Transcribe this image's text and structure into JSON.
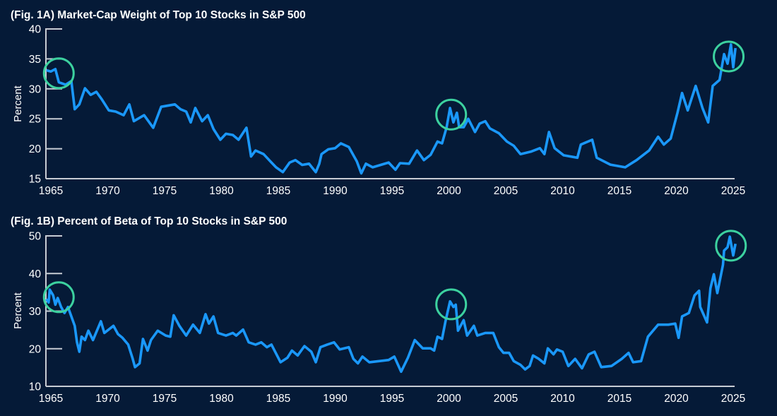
{
  "colors": {
    "background": "#051a37",
    "line": "#1a98fb",
    "highlight": "#3cd19f",
    "axis": "#c8ccd4"
  },
  "chart_data": [
    {
      "type": "line",
      "title": "(Fig. 1A) Market-Cap Weight of Top 10 Stocks in S&P 500",
      "xlabel": "",
      "ylabel": "Percent",
      "xlim": [
        1964.6,
        2025.2
      ],
      "ylim": [
        15,
        40
      ],
      "x_ticks": [
        "1965",
        "1970",
        "1975",
        "1980",
        "1985",
        "1990",
        "1995",
        "2000",
        "2005",
        "2010",
        "2015",
        "2020",
        "2025"
      ],
      "y_ticks": [
        "15",
        "20",
        "25",
        "30",
        "35",
        "40"
      ],
      "grid": false,
      "highlights": [
        {
          "x": 1965.7,
          "y": 32.6
        },
        {
          "x": 2000.2,
          "y": 25.7
        },
        {
          "x": 2024.6,
          "y": 35.4
        }
      ],
      "points": [
        [
          1964.6,
          33.1
        ],
        [
          1965.0,
          32.9
        ],
        [
          1965.4,
          33.3
        ],
        [
          1965.7,
          31.1
        ],
        [
          1966.3,
          30.7
        ],
        [
          1966.8,
          31.3
        ],
        [
          1967.1,
          26.6
        ],
        [
          1967.5,
          27.4
        ],
        [
          1968.0,
          30.1
        ],
        [
          1968.5,
          29.0
        ],
        [
          1969.0,
          29.5
        ],
        [
          1969.5,
          28.2
        ],
        [
          1970.1,
          26.4
        ],
        [
          1970.7,
          26.2
        ],
        [
          1971.4,
          25.6
        ],
        [
          1971.9,
          27.4
        ],
        [
          1972.3,
          24.6
        ],
        [
          1973.2,
          25.6
        ],
        [
          1974.0,
          23.5
        ],
        [
          1974.7,
          27.0
        ],
        [
          1975.9,
          27.4
        ],
        [
          1976.4,
          26.6
        ],
        [
          1976.9,
          26.2
        ],
        [
          1977.3,
          24.4
        ],
        [
          1977.7,
          26.8
        ],
        [
          1978.3,
          24.6
        ],
        [
          1978.8,
          25.6
        ],
        [
          1979.3,
          23.3
        ],
        [
          1979.9,
          21.5
        ],
        [
          1980.4,
          22.5
        ],
        [
          1981.0,
          22.3
        ],
        [
          1981.5,
          21.5
        ],
        [
          1982.2,
          23.5
        ],
        [
          1982.6,
          18.7
        ],
        [
          1983.0,
          19.7
        ],
        [
          1983.7,
          19.1
        ],
        [
          1984.2,
          18.1
        ],
        [
          1984.8,
          16.9
        ],
        [
          1985.4,
          16.1
        ],
        [
          1986.0,
          17.7
        ],
        [
          1986.5,
          18.1
        ],
        [
          1987.1,
          17.3
        ],
        [
          1987.7,
          17.5
        ],
        [
          1988.3,
          16.1
        ],
        [
          1988.6,
          17.5
        ],
        [
          1988.8,
          19.1
        ],
        [
          1989.4,
          19.9
        ],
        [
          1990.0,
          20.1
        ],
        [
          1990.5,
          20.9
        ],
        [
          1991.2,
          20.3
        ],
        [
          1991.9,
          17.9
        ],
        [
          1992.3,
          15.9
        ],
        [
          1992.7,
          17.5
        ],
        [
          1993.3,
          16.9
        ],
        [
          1994.7,
          17.7
        ],
        [
          1995.3,
          16.5
        ],
        [
          1995.7,
          17.6
        ],
        [
          1996.5,
          17.5
        ],
        [
          1997.2,
          19.7
        ],
        [
          1997.8,
          18.1
        ],
        [
          1998.4,
          19.0
        ],
        [
          1999.0,
          21.2
        ],
        [
          1999.4,
          20.9
        ],
        [
          1999.8,
          23.6
        ],
        [
          2000.1,
          26.8
        ],
        [
          2000.4,
          24.4
        ],
        [
          2000.7,
          26.0
        ],
        [
          2000.9,
          23.6
        ],
        [
          2001.3,
          23.6
        ],
        [
          2001.7,
          25.0
        ],
        [
          2002.3,
          22.8
        ],
        [
          2002.7,
          24.2
        ],
        [
          2003.2,
          24.6
        ],
        [
          2003.6,
          23.4
        ],
        [
          2004.4,
          22.6
        ],
        [
          2005.1,
          21.2
        ],
        [
          2005.7,
          20.5
        ],
        [
          2006.3,
          19.1
        ],
        [
          2007.2,
          19.5
        ],
        [
          2008.0,
          20.1
        ],
        [
          2008.4,
          19.1
        ],
        [
          2008.8,
          22.8
        ],
        [
          2009.3,
          20.1
        ],
        [
          2010.1,
          18.9
        ],
        [
          2011.3,
          18.5
        ],
        [
          2011.6,
          20.7
        ],
        [
          2012.6,
          21.5
        ],
        [
          2013.0,
          18.5
        ],
        [
          2014.2,
          17.35
        ],
        [
          2015.5,
          16.9
        ],
        [
          2016.5,
          18.1
        ],
        [
          2017.6,
          19.7
        ],
        [
          2018.4,
          22.0
        ],
        [
          2018.9,
          20.7
        ],
        [
          2019.5,
          21.7
        ],
        [
          2020.1,
          26.0
        ],
        [
          2020.5,
          29.3
        ],
        [
          2021.0,
          26.4
        ],
        [
          2021.7,
          30.5
        ],
        [
          2022.3,
          26.8
        ],
        [
          2022.8,
          24.4
        ],
        [
          2023.2,
          30.5
        ],
        [
          2023.8,
          31.5
        ],
        [
          2024.2,
          35.8
        ],
        [
          2024.5,
          34.2
        ],
        [
          2024.8,
          37.4
        ],
        [
          2025.0,
          33.6
        ],
        [
          2025.2,
          36.8
        ]
      ]
    },
    {
      "type": "line",
      "title": "(Fig. 1B) Percent of Beta of Top 10 Stocks in S&P 500",
      "xlabel": "",
      "ylabel": "Percent",
      "xlim": [
        1964.6,
        2025.2
      ],
      "ylim": [
        10,
        50
      ],
      "x_ticks": [
        "1965",
        "1970",
        "1975",
        "1980",
        "1985",
        "1990",
        "1995",
        "2000",
        "2005",
        "2010",
        "2015",
        "2020",
        "2025"
      ],
      "y_ticks": [
        "10",
        "20",
        "30",
        "40",
        "50"
      ],
      "grid": false,
      "highlights": [
        {
          "x": 1965.7,
          "y": 33.7
        },
        {
          "x": 2000.2,
          "y": 31.8
        },
        {
          "x": 2024.8,
          "y": 47.4
        }
      ],
      "points": [
        [
          1964.6,
          33.2
        ],
        [
          1964.8,
          32.3
        ],
        [
          1964.9,
          35.7
        ],
        [
          1965.2,
          34.2
        ],
        [
          1965.4,
          31.7
        ],
        [
          1965.6,
          33.5
        ],
        [
          1965.9,
          31.1
        ],
        [
          1966.2,
          29.5
        ],
        [
          1966.5,
          31.1
        ],
        [
          1966.8,
          28.6
        ],
        [
          1967.1,
          26.1
        ],
        [
          1967.3,
          21.7
        ],
        [
          1967.5,
          19.2
        ],
        [
          1967.7,
          23.2
        ],
        [
          1968.0,
          22.3
        ],
        [
          1968.3,
          24.8
        ],
        [
          1968.7,
          22.3
        ],
        [
          1969.4,
          27.3
        ],
        [
          1969.7,
          24.2
        ],
        [
          1970.5,
          26.1
        ],
        [
          1970.9,
          23.9
        ],
        [
          1971.3,
          22.9
        ],
        [
          1971.8,
          21.1
        ],
        [
          1972.2,
          17.3
        ],
        [
          1972.4,
          15.1
        ],
        [
          1972.8,
          16.1
        ],
        [
          1973.1,
          22.6
        ],
        [
          1973.5,
          19.5
        ],
        [
          1973.8,
          22.3
        ],
        [
          1974.4,
          24.8
        ],
        [
          1975.1,
          23.5
        ],
        [
          1975.5,
          23.2
        ],
        [
          1975.8,
          28.9
        ],
        [
          1976.3,
          26.1
        ],
        [
          1976.9,
          23.5
        ],
        [
          1977.5,
          26.4
        ],
        [
          1978.1,
          24.2
        ],
        [
          1978.6,
          29.2
        ],
        [
          1978.9,
          26.7
        ],
        [
          1979.3,
          28.6
        ],
        [
          1979.7,
          24.2
        ],
        [
          1980.4,
          23.5
        ],
        [
          1981.0,
          24.2
        ],
        [
          1981.3,
          23.5
        ],
        [
          1981.9,
          25.1
        ],
        [
          1982.4,
          21.7
        ],
        [
          1983.0,
          21.1
        ],
        [
          1983.5,
          21.7
        ],
        [
          1984.0,
          20.4
        ],
        [
          1984.4,
          21.1
        ],
        [
          1985.2,
          16.4
        ],
        [
          1985.8,
          17.6
        ],
        [
          1986.2,
          19.5
        ],
        [
          1986.7,
          18.2
        ],
        [
          1987.3,
          20.7
        ],
        [
          1987.9,
          19.2
        ],
        [
          1988.3,
          16.4
        ],
        [
          1988.7,
          20.4
        ],
        [
          1989.3,
          21.1
        ],
        [
          1989.9,
          21.7
        ],
        [
          1990.4,
          19.8
        ],
        [
          1991.2,
          20.4
        ],
        [
          1991.6,
          17.3
        ],
        [
          1992.0,
          16.1
        ],
        [
          1992.4,
          17.9
        ],
        [
          1993.0,
          16.4
        ],
        [
          1994.7,
          17.0
        ],
        [
          1995.2,
          17.9
        ],
        [
          1995.8,
          13.9
        ],
        [
          1996.4,
          17.6
        ],
        [
          1997.0,
          22.3
        ],
        [
          1997.7,
          20.1
        ],
        [
          1998.4,
          20.1
        ],
        [
          1998.7,
          19.5
        ],
        [
          1999.0,
          23.2
        ],
        [
          1999.4,
          22.6
        ],
        [
          1999.7,
          27.3
        ],
        [
          2000.1,
          32.6
        ],
        [
          2000.4,
          31.1
        ],
        [
          2000.6,
          31.7
        ],
        [
          2000.8,
          24.8
        ],
        [
          2001.3,
          27.6
        ],
        [
          2001.6,
          23.5
        ],
        [
          2002.2,
          26.1
        ],
        [
          2002.5,
          23.5
        ],
        [
          2003.2,
          24.2
        ],
        [
          2003.9,
          24.2
        ],
        [
          2004.4,
          20.4
        ],
        [
          2004.8,
          18.9
        ],
        [
          2005.3,
          18.9
        ],
        [
          2005.7,
          16.7
        ],
        [
          2006.3,
          15.7
        ],
        [
          2006.7,
          14.5
        ],
        [
          2007.1,
          15.4
        ],
        [
          2007.4,
          18.2
        ],
        [
          2007.9,
          17.3
        ],
        [
          2008.4,
          16.1
        ],
        [
          2008.7,
          20.1
        ],
        [
          2009.2,
          18.5
        ],
        [
          2009.5,
          19.8
        ],
        [
          2010.0,
          19.2
        ],
        [
          2010.5,
          15.4
        ],
        [
          2011.1,
          17.3
        ],
        [
          2011.7,
          14.8
        ],
        [
          2012.3,
          18.5
        ],
        [
          2012.8,
          19.2
        ],
        [
          2013.4,
          15.1
        ],
        [
          2014.3,
          15.4
        ],
        [
          2015.2,
          17.3
        ],
        [
          2015.8,
          18.9
        ],
        [
          2016.2,
          16.4
        ],
        [
          2016.9,
          16.7
        ],
        [
          2017.5,
          23.2
        ],
        [
          2018.4,
          26.4
        ],
        [
          2019.3,
          26.4
        ],
        [
          2019.9,
          26.7
        ],
        [
          2020.2,
          22.9
        ],
        [
          2020.5,
          28.6
        ],
        [
          2021.1,
          29.5
        ],
        [
          2021.6,
          34.2
        ],
        [
          2022.0,
          35.4
        ],
        [
          2022.1,
          31.1
        ],
        [
          2022.7,
          27.0
        ],
        [
          2023.0,
          36.1
        ],
        [
          2023.3,
          39.8
        ],
        [
          2023.6,
          34.8
        ],
        [
          2024.1,
          42.3
        ],
        [
          2024.2,
          46.1
        ],
        [
          2024.5,
          47.0
        ],
        [
          2024.7,
          49.8
        ],
        [
          2025.0,
          44.8
        ],
        [
          2025.2,
          47.9
        ]
      ]
    }
  ]
}
